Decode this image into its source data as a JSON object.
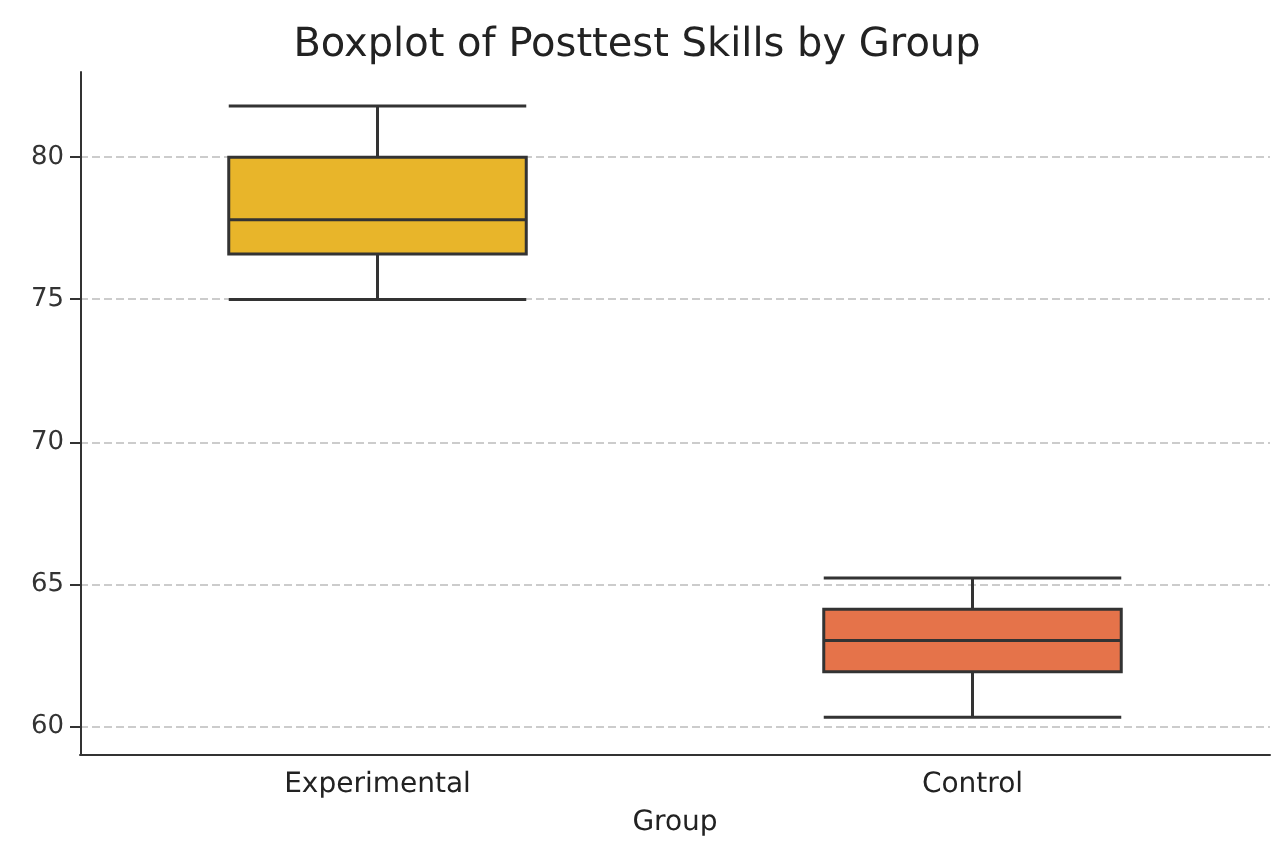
{
  "chart_data": {
    "type": "box",
    "title": "Boxplot of Posttest Skills by Group",
    "xlabel": "Group",
    "categories": [
      "Experimental",
      "Control"
    ],
    "boxes": [
      {
        "low": 75.0,
        "q1": 76.6,
        "median": 77.8,
        "q3": 80.0,
        "high": 81.8
      },
      {
        "low": 60.3,
        "q1": 61.9,
        "median": 63.0,
        "q3": 64.1,
        "high": 65.2
      }
    ],
    "colors": [
      "#e8b52a",
      "#e5734a"
    ],
    "ylim": [
      59,
      83
    ],
    "yticks": [
      60,
      65,
      70,
      75,
      80
    ],
    "grid": "y"
  }
}
